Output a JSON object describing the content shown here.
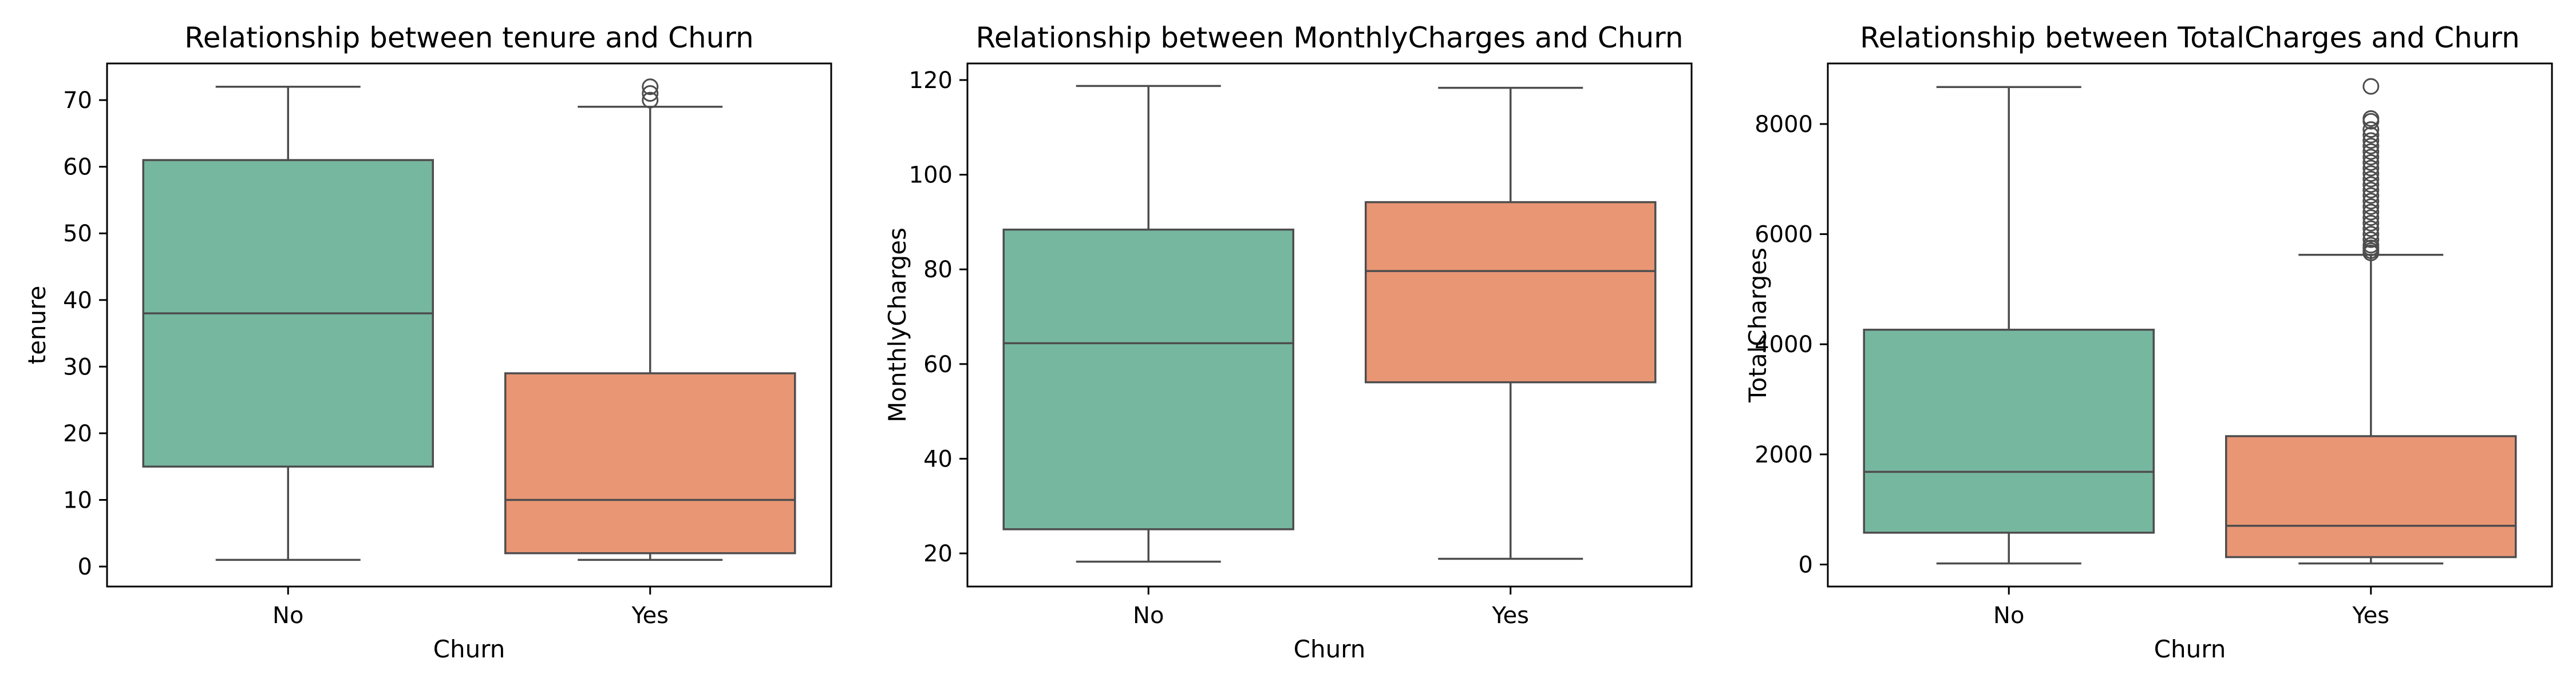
{
  "chart_data": [
    {
      "type": "box",
      "title": "Relationship between tenure and Churn",
      "xlabel": "Churn",
      "ylabel": "tenure",
      "categories": [
        "No",
        "Yes"
      ],
      "ylim": [
        -3,
        75.5
      ],
      "yticks": [
        0,
        10,
        20,
        30,
        40,
        50,
        60,
        70
      ],
      "yticklabels": [
        "0",
        "10",
        "20",
        "30",
        "40",
        "50",
        "60",
        "70"
      ],
      "boxes": [
        {
          "category": "No",
          "whisker_low": 1,
          "q1": 15,
          "median": 38,
          "q3": 61,
          "whisker_high": 72,
          "outliers": []
        },
        {
          "category": "Yes",
          "whisker_low": 1,
          "q1": 2,
          "median": 10,
          "q3": 29,
          "whisker_high": 69,
          "outliers": [
            70,
            71,
            72
          ]
        }
      ]
    },
    {
      "type": "box",
      "title": "Relationship between MonthlyCharges and Churn",
      "xlabel": "Churn",
      "ylabel": "MonthlyCharges",
      "categories": [
        "No",
        "Yes"
      ],
      "ylim": [
        13,
        123.5
      ],
      "yticks": [
        20,
        40,
        60,
        80,
        100,
        120
      ],
      "yticklabels": [
        "20",
        "40",
        "60",
        "80",
        "100",
        "120"
      ],
      "boxes": [
        {
          "category": "No",
          "whisker_low": 18.25,
          "q1": 25.1,
          "median": 64.4,
          "q3": 88.4,
          "whisker_high": 118.75,
          "outliers": []
        },
        {
          "category": "Yes",
          "whisker_low": 18.85,
          "q1": 56.15,
          "median": 79.65,
          "q3": 94.2,
          "whisker_high": 118.35,
          "outliers": []
        }
      ]
    },
    {
      "type": "box",
      "title": "Relationship between TotalCharges and Churn",
      "xlabel": "Churn",
      "ylabel": "TotalCharges",
      "categories": [
        "No",
        "Yes"
      ],
      "ylim": [
        -400,
        9100
      ],
      "yticks": [
        0,
        2000,
        4000,
        6000,
        8000
      ],
      "yticklabels": [
        "0",
        "2000",
        "4000",
        "6000",
        "8000"
      ],
      "boxes": [
        {
          "category": "No",
          "whisker_low": 18.8,
          "q1": 577.8,
          "median": 1683.6,
          "q3": 4264,
          "whisker_high": 8672,
          "outliers": []
        },
        {
          "category": "Yes",
          "whisker_low": 18.85,
          "q1": 134.5,
          "median": 703.55,
          "q3": 2331,
          "whisker_high": 5624,
          "outliers": [
            5660,
            5700,
            5750,
            5800,
            5900,
            6000,
            6100,
            6200,
            6300,
            6400,
            6500,
            6600,
            6700,
            6800,
            6900,
            7000,
            7100,
            7200,
            7300,
            7400,
            7500,
            7600,
            7700,
            7800,
            7900,
            8050,
            8100,
            8684
          ]
        }
      ]
    }
  ],
  "colors": {
    "No": "#76b7a0",
    "Yes": "#e99675",
    "line": "#4d4d4d",
    "frame": "#000000"
  }
}
